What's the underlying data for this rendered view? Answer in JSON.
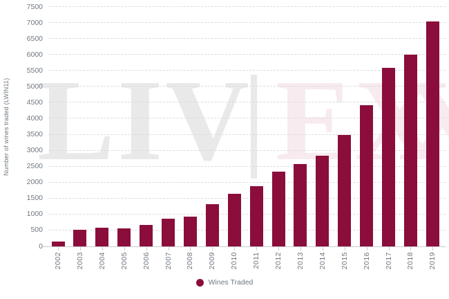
{
  "watermark": {
    "left_text": "LIV",
    "divider": "|",
    "right_text": "EX",
    "clipped_letter": "X",
    "left_color": "#e9e9e9",
    "right_color": "#f7ebef"
  },
  "colors": {
    "bar": "#8b0d3b",
    "axis_text": "#6e7780",
    "gridline": "#dcdcdc",
    "axis_line": "#c9c9c9",
    "background": "#ffffff"
  },
  "legend": {
    "items": [
      {
        "label": "Wines Traded",
        "color": "#8b0d3b"
      }
    ],
    "position": "bottom-center"
  },
  "chart_data": {
    "type": "bar",
    "title": "",
    "categories": [
      "2002",
      "2003",
      "2004",
      "2005",
      "2006",
      "2007",
      "2008",
      "2009",
      "2010",
      "2011",
      "2012",
      "2013",
      "2014",
      "2015",
      "2016",
      "2017",
      "2018",
      "2019"
    ],
    "values": [
      150,
      525,
      575,
      560,
      675,
      860,
      940,
      1330,
      1650,
      1890,
      2340,
      2570,
      2840,
      3490,
      4420,
      5600,
      6000,
      7040
    ],
    "xlabel": "",
    "ylabel": "Number of wines traded (LWIN11)",
    "ylim": [
      0,
      7500
    ],
    "ytick_step": 500,
    "yticks": [
      0,
      500,
      1000,
      1500,
      2000,
      2500,
      3000,
      3500,
      4000,
      4500,
      5000,
      5500,
      6000,
      6500,
      7000,
      7500
    ],
    "grid": "horizontal-dashed",
    "bar_color": "#8b0d3b",
    "legend": [
      "Wines Traded"
    ],
    "legend_position": "bottom-center",
    "x_tick_label_rotation": -90
  }
}
